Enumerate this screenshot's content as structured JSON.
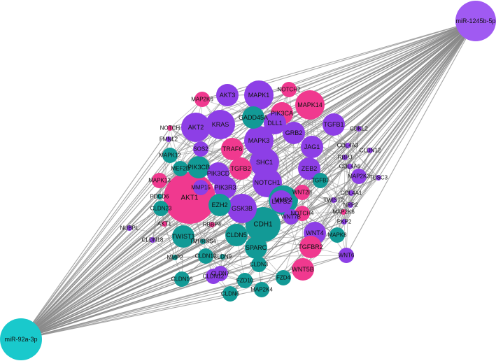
{
  "colors": {
    "magenta": "#f0398f",
    "purple": "#8d3fe6",
    "teal": "#129a96",
    "lavender": "#a05af2",
    "cyan": "#19c9cc",
    "edge": "#8a8a8a",
    "background": "#ffffff"
  },
  "mirnas": [
    {
      "label": "miR-1245b-5p",
      "color": "lavender"
    },
    {
      "label": "miR-92a-3p",
      "color": "cyan"
    }
  ],
  "genes": [
    {
      "label": "AKT3",
      "color": "purple",
      "size": "m"
    },
    {
      "label": "MAPK1",
      "color": "purple",
      "size": "l"
    },
    {
      "label": "NOTCH2",
      "color": "magenta",
      "size": "s"
    },
    {
      "label": "MAP2K6",
      "color": "magenta",
      "size": "s"
    },
    {
      "label": "MAPK14",
      "color": "magenta",
      "size": "l"
    },
    {
      "label": "PIK3CA",
      "color": "magenta",
      "size": "m"
    },
    {
      "label": "GADD45A",
      "color": "teal",
      "size": "m"
    },
    {
      "label": "AKT2",
      "color": "purple",
      "size": "l"
    },
    {
      "label": "KRAS",
      "color": "purple",
      "size": "l"
    },
    {
      "label": "DLL1",
      "color": "purple",
      "size": "m"
    },
    {
      "label": "TGFB1",
      "color": "purple",
      "size": "m"
    },
    {
      "label": "NOTCH",
      "color": "magenta",
      "size": "xs"
    },
    {
      "label": "CDKL2",
      "color": "purple",
      "size": "xs"
    },
    {
      "label": "MAPK3",
      "color": "purple",
      "size": "l"
    },
    {
      "label": "GRB2",
      "color": "purple",
      "size": "m"
    },
    {
      "label": "FMNL2",
      "color": "purple",
      "size": "xs"
    },
    {
      "label": "COL4A3",
      "color": "purple",
      "size": "xs"
    },
    {
      "label": "CLDN12",
      "color": "purple",
      "size": "xs"
    },
    {
      "label": "TRAF6",
      "color": "magenta",
      "size": "m"
    },
    {
      "label": "SOS2",
      "color": "purple",
      "size": "s"
    },
    {
      "label": "JAG1",
      "color": "purple",
      "size": "m"
    },
    {
      "label": "MAPK12",
      "color": "teal",
      "size": "s"
    },
    {
      "label": "RBPJ",
      "color": "purple",
      "size": "xs"
    },
    {
      "label": "COL4A6",
      "color": "purple",
      "size": "xs"
    },
    {
      "label": "SHC1",
      "color": "purple",
      "size": "l"
    },
    {
      "label": "PIK3CB",
      "color": "teal",
      "size": "m"
    },
    {
      "label": "ZEB2",
      "color": "purple",
      "size": "m"
    },
    {
      "label": "MEF2D",
      "color": "teal",
      "size": "s"
    },
    {
      "label": "TGFB2",
      "color": "magenta",
      "size": "m"
    },
    {
      "label": "PIK3CD",
      "color": "purple",
      "size": "m"
    },
    {
      "label": "MAP2K3",
      "color": "purple",
      "size": "s"
    },
    {
      "label": "TUSC3",
      "color": "purple",
      "size": "xs"
    },
    {
      "label": "MAPK13",
      "color": "magenta",
      "size": "s"
    },
    {
      "label": "NOTCH1",
      "color": "purple",
      "size": "l"
    },
    {
      "label": "TGFB3",
      "color": "teal",
      "size": "s"
    },
    {
      "label": "MMP15",
      "color": "purple",
      "size": "s"
    },
    {
      "label": "PIK3R3",
      "color": "purple",
      "size": "m"
    },
    {
      "label": "WNT2B",
      "color": "magenta",
      "size": "s"
    },
    {
      "label": "COL4A1",
      "color": "purple",
      "size": "xs"
    },
    {
      "label": "PDCD6",
      "color": "teal",
      "size": "xs"
    },
    {
      "label": "AKT1",
      "color": "magenta",
      "size": "xxl"
    },
    {
      "label": "MMP2",
      "color": "teal",
      "size": "l"
    },
    {
      "label": "TWIST2",
      "color": "purple",
      "size": "xs"
    },
    {
      "label": "CLDN23",
      "color": "teal",
      "size": "s"
    },
    {
      "label": "LATS2",
      "color": "purple",
      "size": "m"
    },
    {
      "label": "NRP2",
      "color": "purple",
      "size": "xs"
    },
    {
      "label": "EZH2",
      "color": "teal",
      "size": "m"
    },
    {
      "label": "GSK3B",
      "color": "purple",
      "size": "l"
    },
    {
      "label": "NOTCH4",
      "color": "magenta",
      "size": "s"
    },
    {
      "label": "MAP2K6",
      "color": "magenta",
      "size": "xs"
    },
    {
      "label": "WNT7B",
      "color": "purple",
      "size": "s"
    },
    {
      "label": "PKP2",
      "color": "purple",
      "size": "xs"
    },
    {
      "label": "NUBPL",
      "color": "purple",
      "size": "xs"
    },
    {
      "label": "AKT1",
      "color": "magenta",
      "size": "xs"
    },
    {
      "label": "RBBP4",
      "color": "magenta",
      "size": "xs"
    },
    {
      "label": "CDH1",
      "color": "teal",
      "size": "xl"
    },
    {
      "label": "WNT4",
      "color": "purple",
      "size": "m"
    },
    {
      "label": "MAPK8",
      "color": "teal",
      "size": "s"
    },
    {
      "label": "CLDN18",
      "color": "purple",
      "size": "xs"
    },
    {
      "label": "TWIST1",
      "color": "teal",
      "size": "m"
    },
    {
      "label": "TMPRSS4",
      "color": "teal",
      "size": "xs"
    },
    {
      "label": "CLDN5",
      "color": "teal",
      "size": "m"
    },
    {
      "label": "TGFBR2",
      "color": "magenta",
      "size": "m"
    },
    {
      "label": "WNT6",
      "color": "purple",
      "size": "s"
    },
    {
      "label": "MMP2",
      "color": "teal",
      "size": "xs"
    },
    {
      "label": "CLDN19",
      "color": "teal",
      "size": "s"
    },
    {
      "label": "CLDN9",
      "color": "teal",
      "size": "xs"
    },
    {
      "label": "SPARC",
      "color": "teal",
      "size": "m"
    },
    {
      "label": "CLDN3",
      "color": "teal",
      "size": "s"
    },
    {
      "label": "WNT5B",
      "color": "magenta",
      "size": "m"
    },
    {
      "label": "CLDN7",
      "color": "purple",
      "size": "s"
    },
    {
      "label": "CLDN16",
      "color": "teal",
      "size": "s"
    },
    {
      "label": "CLDN12",
      "color": "purple",
      "size": "s"
    },
    {
      "label": "FZD10",
      "color": "teal",
      "size": "s"
    },
    {
      "label": "FZD4",
      "color": "teal",
      "size": "s"
    },
    {
      "label": "MAP2K4",
      "color": "teal",
      "size": "s"
    },
    {
      "label": "CLDN6",
      "color": "teal",
      "size": "s"
    }
  ]
}
